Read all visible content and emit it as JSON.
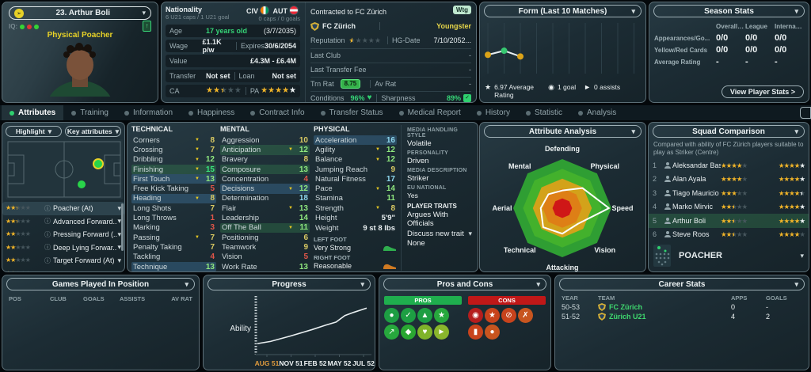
{
  "player_card": {
    "name": "23. Arthur Boli",
    "iq_label": "IQ:",
    "iq_dots": [
      "#35d435",
      "#e03535",
      "#35d435"
    ],
    "style": "Physical Poacher"
  },
  "overview": {
    "nationality_label": "Nationality",
    "nationality_sub": "6 U21 caps / 1 U21 goal",
    "nations": [
      {
        "code": "CIV"
      },
      {
        "code": "AUT"
      }
    ],
    "nation_sub_right": "0 caps / 0 goals",
    "age_label": "Age",
    "age_value": "17 years old",
    "age_dob": "(3/7/2035)",
    "wage_label": "Wage",
    "wage_value": "£1.1K p/w",
    "expires_label": "Expires",
    "expires_value": "30/6/2054",
    "value_label": "Value",
    "value_value": "£4.3M - £6.4M",
    "transfer_label": "Transfer",
    "transfer_value": "Not set",
    "loan_label": "Loan",
    "loan_value": "Not set",
    "ca_label": "CA",
    "pa_label": "PA",
    "ca": {
      "gold": 2,
      "half": 1
    },
    "pa": {
      "gold": 4,
      "white": 1
    }
  },
  "contract": {
    "contracted_to": "Contracted to FC Zürich",
    "badge": "Wtg",
    "club": "FC Zürich",
    "status": "Youngster",
    "reputation_label": "Reputation",
    "reputation": {
      "half": 1
    },
    "hg_label": "HG-Date",
    "hg_value": "7/10/2052...",
    "last_club_label": "Last Club",
    "last_club_value": "-",
    "last_fee_label": "Last Transfer Fee",
    "last_fee_value": "-",
    "trn_label": "Trn Rat",
    "trn_value": "8.75",
    "avrat_label": "Av Rat",
    "avrat_value": "-",
    "cond_label": "Conditions",
    "cond_value": "96%",
    "sharp_label": "Sharpness",
    "sharp_value": "89%"
  },
  "form": {
    "title": "Form (Last 10 Matches)",
    "average": "6.97 Average Rating",
    "goals": "1 goal",
    "assists": "0 assists",
    "chart_data": {
      "type": "line",
      "matches": [
        1,
        2,
        3
      ],
      "ratings": [
        6.9,
        7.4,
        6.7
      ],
      "dot_colors": [
        "#dba318",
        "#37c871",
        "#dba318"
      ],
      "total_slots": 10
    }
  },
  "season_stats": {
    "title": "Season Stats",
    "columns": [
      "Overall (Cl...",
      "League",
      "Internatio..."
    ],
    "rows": [
      {
        "label": "Appearances/Go...",
        "values": [
          "0/0",
          "0/0",
          "0/0"
        ]
      },
      {
        "label": "Yellow/Red Cards",
        "values": [
          "0/0",
          "0/0",
          "0/0"
        ]
      },
      {
        "label": "Average Rating",
        "values": [
          "-",
          "-",
          "-"
        ]
      }
    ],
    "button": "View Player Stats >"
  },
  "tabs": [
    {
      "label": "Attributes",
      "active": true
    },
    {
      "label": "Training"
    },
    {
      "label": "Information"
    },
    {
      "label": "Happiness"
    },
    {
      "label": "Contract Info"
    },
    {
      "label": "Transfer Status"
    },
    {
      "label": "Medical Report"
    },
    {
      "label": "History"
    },
    {
      "label": "Statistic"
    },
    {
      "label": "Analysis"
    }
  ],
  "sidebar": {
    "highlight_btn": "Highlight",
    "key_attributes_btn": "Key attributes",
    "roles": [
      {
        "name": "Poacher (At)",
        "stars": {
          "gold": 2,
          "half": 1
        },
        "selected": true
      },
      {
        "name": "Advanced Forward...",
        "stars": {
          "gold": 2,
          "half": 1
        }
      },
      {
        "name": "Pressing Forward (...",
        "stars": {
          "gold": 2
        }
      },
      {
        "name": "Deep Lying Forwar...",
        "stars": {
          "gold": 2
        }
      },
      {
        "name": "Target Forward (At)",
        "stars": {
          "gold": 2
        }
      },
      {
        "name": "",
        "stars": {
          "gold": 2,
          "half": 1
        },
        "partial": true
      }
    ]
  },
  "attributes": {
    "technical": {
      "title": "TECHNICAL",
      "items": [
        {
          "name": "Corners",
          "value": 8,
          "tier": "yellow",
          "flag": true
        },
        {
          "name": "Crossing",
          "value": 7,
          "tier": "yellow",
          "flag": true
        },
        {
          "name": "Dribbling",
          "value": 12,
          "tier": "green",
          "flag": true
        },
        {
          "name": "Finishing",
          "value": 15,
          "tier": "bright",
          "flag": true,
          "hl": "green"
        },
        {
          "name": "First Touch",
          "value": 13,
          "tier": "green",
          "flag": true,
          "hl": "blue"
        },
        {
          "name": "Free Kick Taking",
          "value": 5,
          "tier": "red"
        },
        {
          "name": "Heading",
          "value": 8,
          "tier": "yellow",
          "flag": true,
          "hl": "blue"
        },
        {
          "name": "Long Shots",
          "value": 7,
          "tier": "yellow"
        },
        {
          "name": "Long Throws",
          "value": 1,
          "tier": "red"
        },
        {
          "name": "Marking",
          "value": 3,
          "tier": "red"
        },
        {
          "name": "Passing",
          "value": 7,
          "tier": "yellow",
          "flag": true
        },
        {
          "name": "Penalty Taking",
          "value": 7,
          "tier": "yellow"
        },
        {
          "name": "Tackling",
          "value": 4,
          "tier": "red"
        },
        {
          "name": "Technique",
          "value": 13,
          "tier": "green",
          "hl": "blue"
        }
      ]
    },
    "mental": {
      "title": "MENTAL",
      "items": [
        {
          "name": "Aggression",
          "value": 10,
          "tier": "yellow"
        },
        {
          "name": "Anticipation",
          "value": 12,
          "tier": "green",
          "flag": true,
          "hl": "green"
        },
        {
          "name": "Bravery",
          "value": 8,
          "tier": "yellow"
        },
        {
          "name": "Composure",
          "value": 13,
          "tier": "green",
          "hl": "green"
        },
        {
          "name": "Concentration",
          "value": 4,
          "tier": "red"
        },
        {
          "name": "Decisions",
          "value": 12,
          "tier": "green",
          "flag": true,
          "hl": "blue"
        },
        {
          "name": "Determination",
          "value": 18,
          "tier": "cyan"
        },
        {
          "name": "Flair",
          "value": 13,
          "tier": "green",
          "flag": true
        },
        {
          "name": "Leadership",
          "value": 14,
          "tier": "green"
        },
        {
          "name": "Off The Ball",
          "value": 11,
          "tier": "green",
          "flag": true,
          "hl": "green"
        },
        {
          "name": "Positioning",
          "value": 6,
          "tier": "yellow"
        },
        {
          "name": "Teamwork",
          "value": 9,
          "tier": "yellow"
        },
        {
          "name": "Vision",
          "value": 5,
          "tier": "red"
        },
        {
          "name": "Work Rate",
          "value": 13,
          "tier": "green"
        }
      ]
    },
    "physical": {
      "title": "PHYSICAL",
      "items": [
        {
          "name": "Acceleration",
          "value": 16,
          "tier": "cyan",
          "hl": "blue"
        },
        {
          "name": "Agility",
          "value": 12,
          "tier": "green",
          "flag": true
        },
        {
          "name": "Balance",
          "value": 12,
          "tier": "green",
          "flag": true
        },
        {
          "name": "Jumping Reach",
          "value": 9,
          "tier": "yellow"
        },
        {
          "name": "Natural Fitness",
          "value": 17,
          "tier": "cyan"
        },
        {
          "name": "Pace",
          "value": 14,
          "tier": "green",
          "flag": true
        },
        {
          "name": "Stamina",
          "value": 11,
          "tier": "green"
        },
        {
          "name": "Strength",
          "value": 8,
          "tier": "yellow",
          "flag": true
        }
      ]
    },
    "body": {
      "height_label": "Height",
      "height_value": "5'9\"",
      "weight_label": "Weight",
      "weight_value": "9 st 8 lbs",
      "left_foot_label": "LEFT FOOT",
      "left_foot_value": "Very Strong",
      "left_foot_color": "#2fae4e",
      "right_foot_label": "RIGHT FOOT",
      "right_foot_value": "Reasonable",
      "right_foot_color": "#cf7a22"
    }
  },
  "media": {
    "mhs_label": "MEDIA HANDLING STYLE",
    "mhs_value": "Volatile",
    "personality_label": "PERSONALITY",
    "personality_value": "Driven",
    "md_label": "MEDIA DESCRIPTION",
    "md_value": "Striker",
    "eu_label": "EU NATIONAL",
    "eu_value": "Yes",
    "traits_label": "PLAYER TRAITS",
    "trait_value": "Argues With Officials",
    "discuss_label": "Discuss new trait",
    "none_value": "None"
  },
  "radar": {
    "title": "Attribute Analysis",
    "chart_data": {
      "type": "radar",
      "axes": [
        "Defending",
        "Physical",
        "Speed",
        "Vision",
        "Attacking",
        "Technical",
        "Aerial",
        "Mental"
      ],
      "values": [
        0.36,
        0.58,
        0.95,
        0.45,
        0.52,
        0.55,
        0.44,
        0.4
      ],
      "scale": "fraction of max ability ring",
      "ring_colors": [
        "#2f9e33",
        "#43b12c",
        "#d3a21a",
        "#de7f16",
        "#cf1717"
      ]
    }
  },
  "squad_comparison": {
    "title": "Squad Comparison",
    "subtitle": "Compared with ability of FC Zürich players suitable to play as Striker (Centre)",
    "players": [
      {
        "rank": "1",
        "name": "Aleksandar Basic",
        "ca": {
          "gold": 4
        },
        "pa": {
          "gold": 4,
          "white": 1
        }
      },
      {
        "rank": "2",
        "name": "Alan Ayala",
        "ca": {
          "gold": 4
        },
        "pa": {
          "gold": 4,
          "white": 1
        }
      },
      {
        "rank": "3",
        "name": "Tiago Mauricio",
        "ca": {
          "gold": 3
        },
        "pa": {
          "gold": 4,
          "halfWhite": 1
        }
      },
      {
        "rank": "4",
        "name": "Marko Mirvic",
        "ca": {
          "gold": 2,
          "half": 1
        },
        "pa": {
          "gold": 4,
          "white": 1
        }
      },
      {
        "rank": "5",
        "name": "Arthur Boli",
        "ca": {
          "gold": 2,
          "half": 1
        },
        "pa": {
          "gold": 4,
          "white": 1
        },
        "selected": true
      },
      {
        "rank": "6",
        "name": "Steve Roos",
        "ca": {
          "gold": 2,
          "half": 1
        },
        "pa": {
          "gold": 4
        }
      }
    ],
    "role_select": "POACHER"
  },
  "games_played": {
    "title": "Games Played In Position",
    "columns": [
      "POS",
      "CLUB",
      "GOALS",
      "ASSISTS",
      "AV RAT"
    ]
  },
  "progress": {
    "title": "Progress",
    "ylabel": "Ability",
    "xticks": [
      "AUG 51",
      "NOV 51",
      "FEB 52",
      "MAY 52",
      "JUL 52"
    ],
    "chart_data": {
      "type": "line",
      "points_fraction": [
        [
          0,
          0.16
        ],
        [
          0.12,
          0.2
        ],
        [
          0.3,
          0.3
        ],
        [
          0.5,
          0.42
        ],
        [
          0.62,
          0.5
        ],
        [
          0.72,
          0.56
        ],
        [
          0.8,
          0.68
        ],
        [
          0.88,
          0.74
        ],
        [
          1.0,
          0.82
        ]
      ]
    }
  },
  "pros_cons": {
    "title": "Pros and Cons",
    "pros_label": "PROS",
    "cons_label": "CONS",
    "pros_icons": [
      {
        "glyph": "●",
        "color": "#1d9e43"
      },
      {
        "glyph": "✓",
        "color": "#1d9e43"
      },
      {
        "glyph": "▲",
        "color": "#1d9e43"
      },
      {
        "glyph": "★",
        "color": "#27a83d"
      },
      {
        "glyph": "↗",
        "color": "#27a83d"
      },
      {
        "glyph": "◆",
        "color": "#2aa732"
      },
      {
        "glyph": "♥",
        "color": "#7fb32a"
      },
      {
        "glyph": "►",
        "color": "#8ab62c"
      }
    ],
    "cons_icons": [
      {
        "glyph": "◉",
        "color": "#b51d1d"
      },
      {
        "glyph": "★",
        "color": "#c8431c"
      },
      {
        "glyph": "⊘",
        "color": "#c8431c"
      },
      {
        "glyph": "✗",
        "color": "#c8551f"
      },
      {
        "glyph": "▮",
        "color": "#c8431c"
      },
      {
        "glyph": "●",
        "color": "#c8551f"
      }
    ]
  },
  "career_stats": {
    "title": "Career Stats",
    "columns": [
      "YEAR",
      "TEAM",
      "APPS",
      "GOALS"
    ],
    "rows": [
      {
        "year": "50-53",
        "team": "FC Zürich",
        "apps": "0",
        "goals": "-"
      },
      {
        "year": "51-52",
        "team": "Zürich U21",
        "apps": "4",
        "goals": "2"
      }
    ]
  },
  "colors": {
    "accent_green": "#2fd06f",
    "star_gold": "#f0b429",
    "highlight_yellow": "#e8d227"
  }
}
